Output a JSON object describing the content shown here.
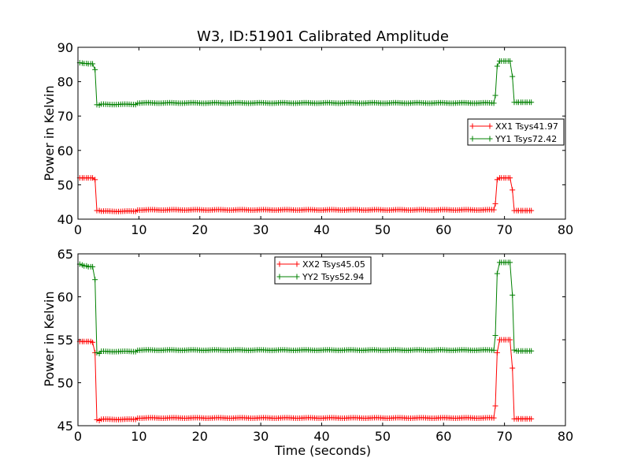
{
  "chart_data": [
    {
      "type": "line",
      "title": "W3, ID:51901 Calibrated Amplitude",
      "xlabel": "",
      "ylabel": "Power in Kelvin",
      "xlim": [
        0,
        80
      ],
      "ylim": [
        40,
        90
      ],
      "xticks": [
        "0",
        "10",
        "20",
        "30",
        "40",
        "50",
        "60",
        "70",
        "80"
      ],
      "yticks": [
        "40",
        "50",
        "60",
        "70",
        "80",
        "90"
      ],
      "legend_position": "center-right",
      "marker": "+",
      "grid": false,
      "series": [
        {
          "name": "XX1 Tsys41.97",
          "color": "#ff0000",
          "x": [
            0.3,
            0.7,
            1.0,
            1.4,
            1.7,
            2.1,
            2.4,
            2.8,
            3.1,
            3.5,
            10.0,
            30.0,
            68.5,
            68.8,
            69.2,
            69.5,
            69.9,
            70.2,
            70.6,
            70.9,
            71.3,
            71.6,
            72.0,
            72.3,
            72.7,
            73.0,
            73.4,
            73.7,
            74.1,
            74.4
          ],
          "values": [
            52,
            52,
            52,
            52,
            52,
            52,
            52,
            51.5,
            42.5,
            42.5,
            42.7,
            42.9,
            44.5,
            51.5,
            52,
            52,
            52,
            52,
            52,
            52,
            48.5,
            42.5,
            42.5,
            42.5,
            42.5,
            42.5,
            42.5,
            42.5,
            42.5,
            42.5
          ],
          "baseline_between": {
            "from": 3.5,
            "to": 68.5,
            "value": 42.7
          }
        },
        {
          "name": "YY1 Tsys72.42",
          "color": "#008000",
          "x": [
            0.3,
            0.7,
            1.0,
            1.4,
            1.7,
            2.1,
            2.4,
            2.8,
            3.1,
            3.5,
            10.0,
            30.0,
            68.5,
            68.8,
            69.2,
            69.5,
            69.9,
            70.2,
            70.6,
            70.9,
            71.3,
            71.6,
            72.0,
            72.3,
            72.7,
            73.0,
            73.4,
            73.7,
            74.1,
            74.4
          ],
          "values": [
            85.5,
            85.4,
            85.3,
            85.3,
            85.2,
            85.2,
            85.2,
            83.5,
            73.3,
            73.2,
            73.5,
            74.0,
            76,
            84.5,
            86,
            86,
            86,
            86,
            86,
            86,
            81.5,
            74,
            74,
            74,
            74,
            74,
            74,
            74,
            74,
            74
          ],
          "baseline_between": {
            "from": 3.5,
            "to": 68.5,
            "value": 73.8
          }
        }
      ]
    },
    {
      "type": "line",
      "title": "",
      "xlabel": "Time (seconds)",
      "ylabel": "Power in Kelvin",
      "xlim": [
        0,
        80
      ],
      "ylim": [
        45,
        65
      ],
      "xticks": [
        "0",
        "10",
        "20",
        "30",
        "40",
        "50",
        "60",
        "70",
        "80"
      ],
      "yticks": [
        "45",
        "50",
        "55",
        "60",
        "65"
      ],
      "legend_position": "upper-center",
      "marker": "+",
      "grid": false,
      "series": [
        {
          "name": "XX2 Tsys45.05",
          "color": "#ff0000",
          "x": [
            0.3,
            0.7,
            1.0,
            1.4,
            1.7,
            2.1,
            2.4,
            2.8,
            3.1,
            3.5,
            10.0,
            30.0,
            68.5,
            68.8,
            69.2,
            69.5,
            69.9,
            70.2,
            70.6,
            70.9,
            71.3,
            71.6,
            72.0,
            72.3,
            72.7,
            73.0,
            73.4,
            73.7,
            74.1,
            74.4
          ],
          "values": [
            54.8,
            54.8,
            54.8,
            54.8,
            54.8,
            54.8,
            54.7,
            53.5,
            45.7,
            45.6,
            45.8,
            46.0,
            47.3,
            53.5,
            55,
            55,
            55,
            55,
            55,
            55,
            51.7,
            45.8,
            45.8,
            45.8,
            45.8,
            45.8,
            45.8,
            45.8,
            45.8,
            45.8
          ],
          "baseline_between": {
            "from": 3.5,
            "to": 68.5,
            "value": 45.9
          }
        },
        {
          "name": "YY2 Tsys52.94",
          "color": "#008000",
          "x": [
            0.3,
            0.7,
            1.0,
            1.4,
            1.7,
            2.1,
            2.4,
            2.8,
            3.1,
            3.5,
            10.0,
            30.0,
            68.5,
            68.8,
            69.2,
            69.5,
            69.9,
            70.2,
            70.6,
            70.9,
            71.3,
            71.6,
            72.0,
            72.3,
            72.7,
            73.0,
            73.4,
            73.7,
            74.1,
            74.4
          ],
          "values": [
            63.8,
            63.7,
            63.6,
            63.6,
            63.5,
            63.5,
            63.5,
            62.0,
            53.5,
            53.4,
            53.7,
            54.0,
            55.5,
            62.7,
            64,
            64,
            64,
            64,
            64,
            64,
            60.2,
            53.8,
            53.7,
            53.7,
            53.7,
            53.7,
            53.7,
            53.7,
            53.7,
            53.7
          ],
          "baseline_between": {
            "from": 3.5,
            "to": 68.5,
            "value": 53.8
          }
        }
      ]
    }
  ]
}
